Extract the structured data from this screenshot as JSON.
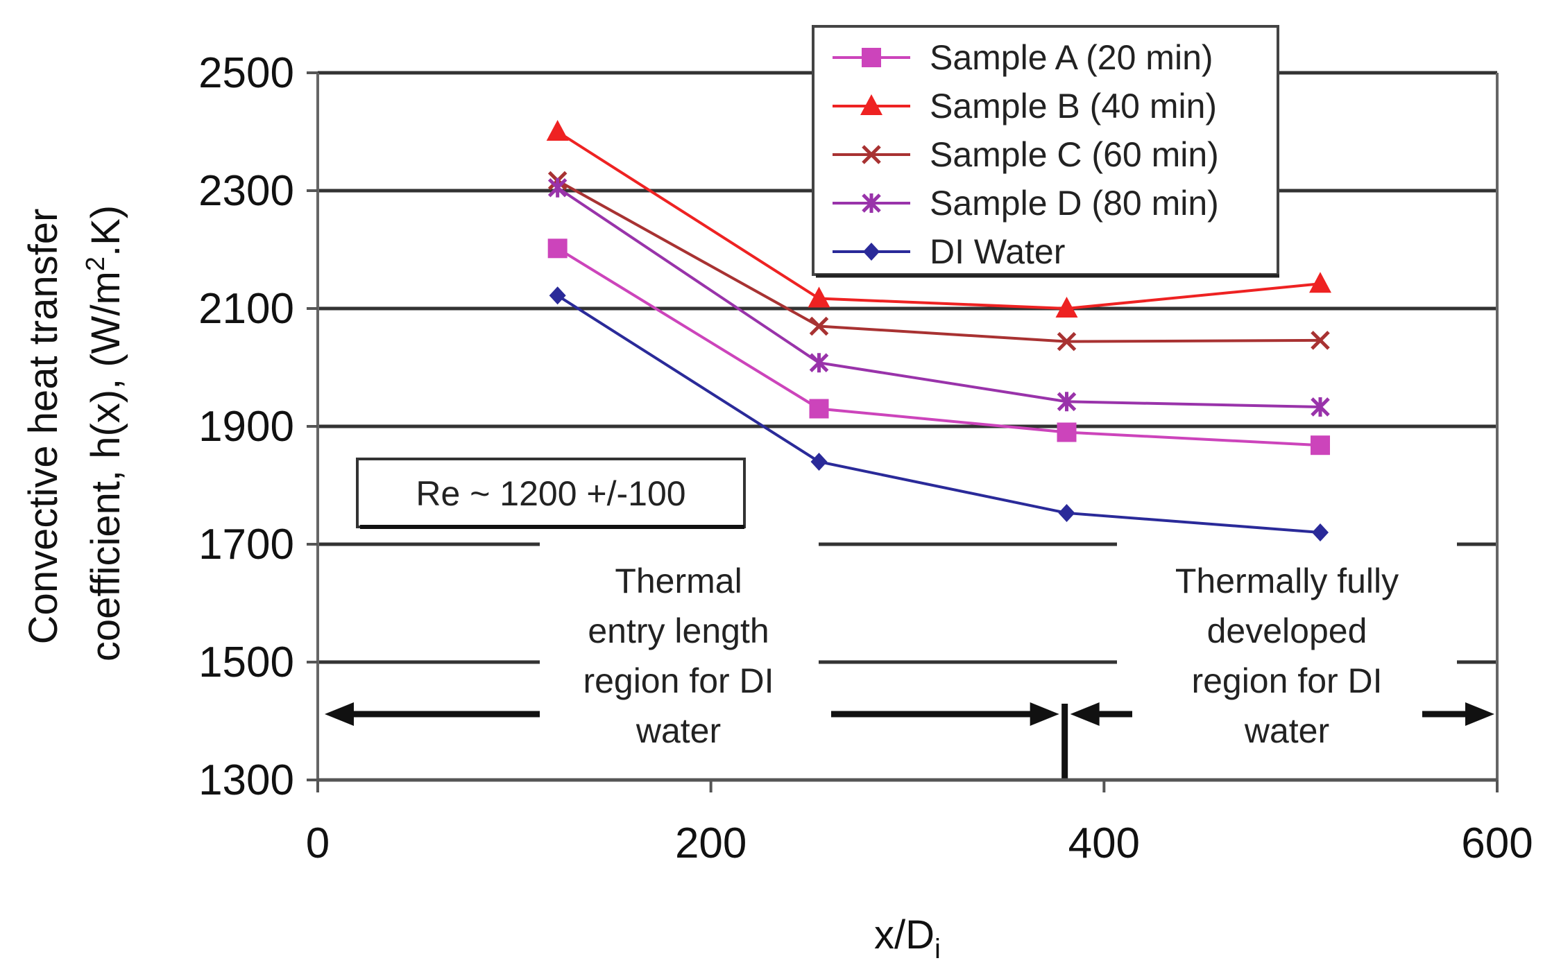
{
  "chart_data": {
    "type": "line",
    "title": "",
    "xlabel": "x/D",
    "xlabel_subscript": "i",
    "ylabel_line1": "Convective heat transfer",
    "ylabel_line2_pre": "coefficient, h(x), (W/m",
    "ylabel_line2_sup": "2",
    "ylabel_line2_post": ".K)",
    "xlim": [
      0,
      600
    ],
    "ylim": [
      1300,
      2500
    ],
    "x_ticks": [
      0,
      200,
      400,
      600
    ],
    "y_ticks": [
      1300,
      1500,
      1700,
      1900,
      2100,
      2300,
      2500
    ],
    "legend_position": "top-right",
    "x": [
      122,
      255,
      381,
      510
    ],
    "series": [
      {
        "name": "Sample A (20 min)",
        "marker": "square",
        "color": "#cc44bb",
        "values": [
          2202,
          1930,
          1890,
          1868
        ]
      },
      {
        "name": "Sample B (40 min)",
        "marker": "triangle",
        "color": "#ee2222",
        "values": [
          2400,
          2117,
          2100,
          2142
        ]
      },
      {
        "name": "Sample C (60 min)",
        "marker": "x",
        "color": "#a83232",
        "values": [
          2317,
          2070,
          2044,
          2046
        ]
      },
      {
        "name": "Sample D (80 min)",
        "marker": "star",
        "color": "#9933aa",
        "values": [
          2305,
          2008,
          1942,
          1933
        ]
      },
      {
        "name": "DI Water",
        "marker": "diamond",
        "color": "#2a2a99",
        "values": [
          2122,
          1840,
          1753,
          1720
        ]
      }
    ],
    "annotations": {
      "re_box": "Re ~ 1200 +/-100",
      "boundary_x": 380,
      "left_region": [
        "Thermal",
        "entry length",
        "region for DI",
        "water"
      ],
      "right_region": [
        "Thermally fully",
        "developed",
        "region for DI",
        "water"
      ]
    }
  }
}
